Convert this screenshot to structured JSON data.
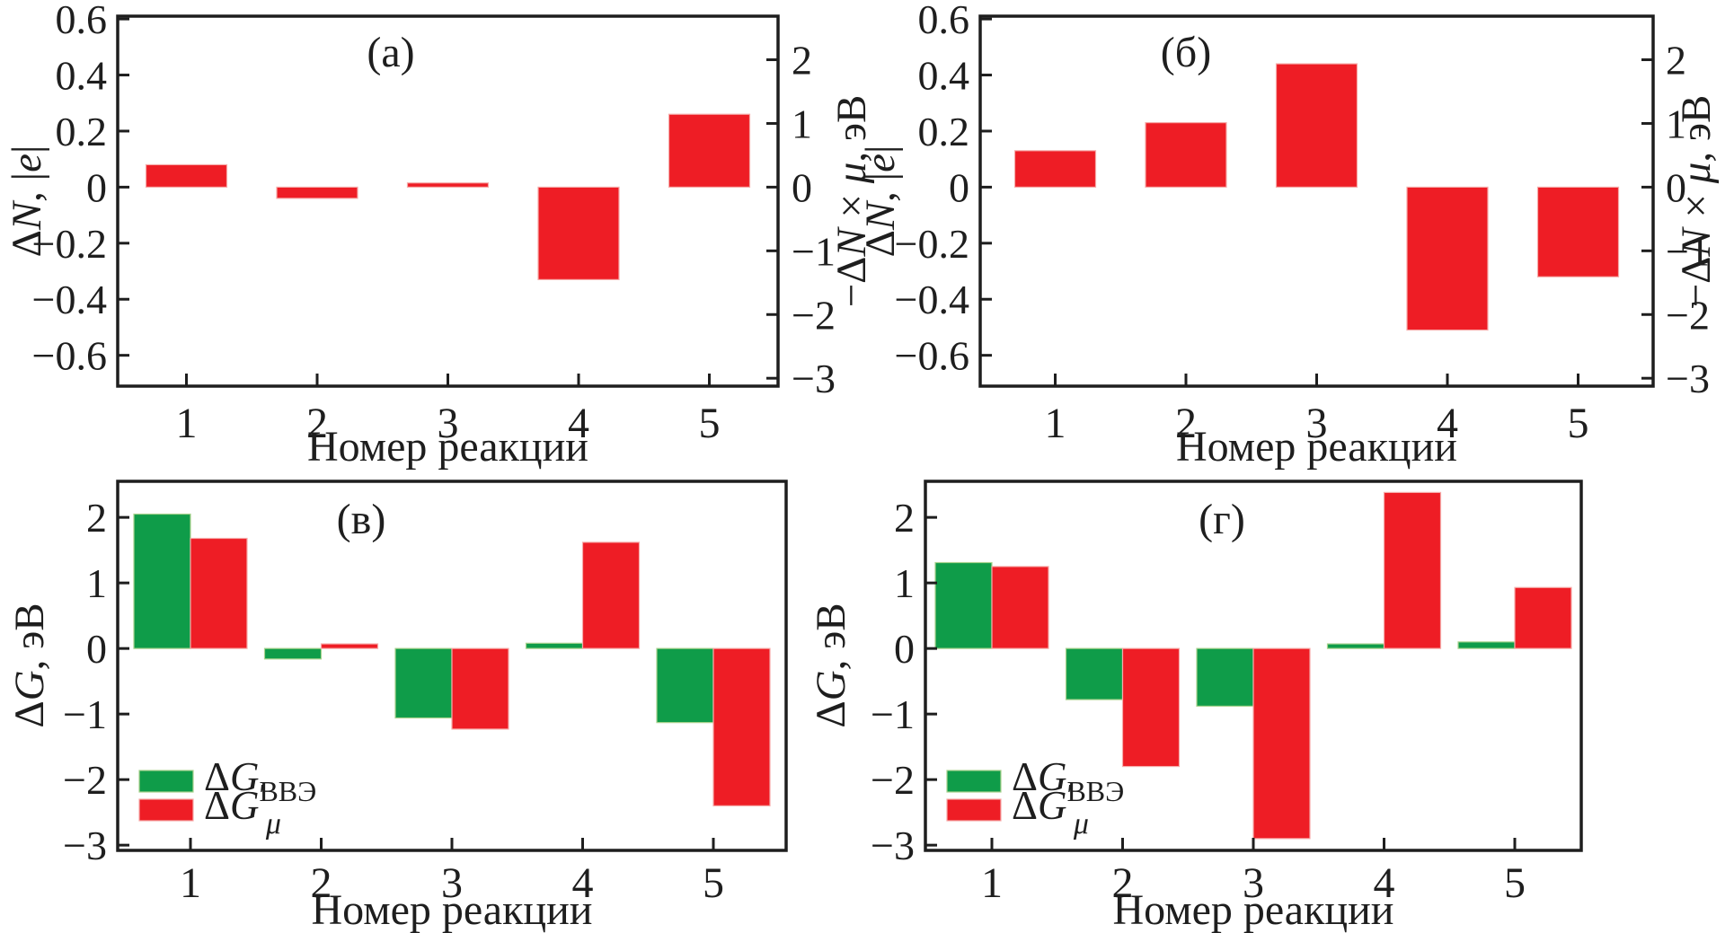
{
  "figure": {
    "x_title": "Номер реакции",
    "categories": [
      "1",
      "2",
      "3",
      "4",
      "5"
    ],
    "colors": {
      "red": "#ee1d25",
      "green": "#0f9c49",
      "axis": "#1e1e1e",
      "background": "#ffffff"
    },
    "legend": [
      {
        "symbol": "ΔG",
        "subscript": "ВВЭ",
        "prime": false,
        "color_key": "green",
        "label_plain": "ΔG_ВВЭ"
      },
      {
        "symbol": "ΔG",
        "subscript": "μ",
        "prime": true,
        "color_key": "red",
        "label_plain": "ΔG'_μ"
      }
    ]
  },
  "chart_data": [
    {
      "type": "bar",
      "label": "(а)",
      "title": "(а)",
      "xlabel": "Номер реакции",
      "ylabel_left": "ΔN, |e|",
      "ylabel_right": "−ΔN × μ, эВ",
      "categories": [
        "1",
        "2",
        "3",
        "4",
        "5"
      ],
      "series": [
        {
          "name": "ΔN",
          "color_key": "red",
          "values": [
            0.08,
            -0.04,
            0.015,
            -0.33,
            0.26
          ]
        }
      ],
      "ylim_left": [
        -0.71,
        0.61
      ],
      "yticks_left": [
        0.6,
        0.4,
        0.2,
        0,
        -0.2,
        -0.4,
        -0.6
      ],
      "yticks_left_labels": [
        "0.6",
        "0.4",
        "0.2",
        "0",
        "−0.2",
        "−0.4",
        "−0.6"
      ],
      "yticks_right": [
        2,
        1,
        0,
        -1,
        -2,
        -3
      ],
      "yticks_right_labels": [
        "2",
        "1",
        "0",
        "−1",
        "−2",
        "−3"
      ],
      "right_axis_factor": 4.4,
      "grid": false,
      "legend_position": "none"
    },
    {
      "type": "bar",
      "label": "(б)",
      "title": "(б)",
      "xlabel": "Номер реакции",
      "ylabel_left": "ΔN, |e|",
      "ylabel_right": "−ΔN × μ, эВ",
      "categories": [
        "1",
        "2",
        "3",
        "4",
        "5"
      ],
      "series": [
        {
          "name": "ΔN",
          "color_key": "red",
          "values": [
            0.13,
            0.23,
            0.44,
            -0.51,
            -0.32
          ]
        }
      ],
      "ylim_left": [
        -0.71,
        0.61
      ],
      "yticks_left": [
        0.6,
        0.4,
        0.2,
        0,
        -0.2,
        -0.4,
        -0.6
      ],
      "yticks_left_labels": [
        "0.6",
        "0.4",
        "0.2",
        "0",
        "−0.2",
        "−0.4",
        "−0.6"
      ],
      "yticks_right": [
        2,
        1,
        0,
        -1,
        -2,
        -3
      ],
      "yticks_right_labels": [
        "2",
        "1",
        "0",
        "−1",
        "−2",
        "−3"
      ],
      "right_axis_factor": 4.4,
      "grid": false,
      "legend_position": "none"
    },
    {
      "type": "bar",
      "label": "(в)",
      "title": "(в)",
      "xlabel": "Номер реакции",
      "ylabel_left": "ΔG, эВ",
      "categories": [
        "1",
        "2",
        "3",
        "4",
        "5"
      ],
      "series": [
        {
          "name": "ΔG_ВВЭ",
          "color_key": "green",
          "values": [
            2.05,
            -0.16,
            -1.06,
            0.08,
            -1.13
          ]
        },
        {
          "name": "ΔG'_μ",
          "color_key": "red",
          "values": [
            1.68,
            0.07,
            -1.23,
            1.62,
            -2.4
          ]
        }
      ],
      "ylim": [
        -3.08,
        2.55
      ],
      "yticks": [
        2,
        1,
        0,
        -1,
        -2,
        -3
      ],
      "yticks_labels": [
        "2",
        "1",
        "0",
        "−1",
        "−2",
        "−3"
      ],
      "grid": false,
      "legend_position": "lower-left"
    },
    {
      "type": "bar",
      "label": "(г)",
      "title": "(г)",
      "xlabel": "Номер реакции",
      "ylabel_left": "ΔG, эВ",
      "categories": [
        "1",
        "2",
        "3",
        "4",
        "5"
      ],
      "series": [
        {
          "name": "ΔG_ВВЭ",
          "color_key": "green",
          "values": [
            1.31,
            -0.78,
            -0.88,
            0.07,
            0.1
          ]
        },
        {
          "name": "ΔG'_μ",
          "color_key": "red",
          "values": [
            1.25,
            -1.8,
            -2.9,
            2.38,
            0.93
          ]
        }
      ],
      "ylim": [
        -3.08,
        2.55
      ],
      "yticks": [
        2,
        1,
        0,
        -1,
        -2,
        -3
      ],
      "yticks_labels": [
        "2",
        "1",
        "0",
        "−1",
        "−2",
        "−3"
      ],
      "grid": false,
      "legend_position": "lower-left"
    }
  ]
}
